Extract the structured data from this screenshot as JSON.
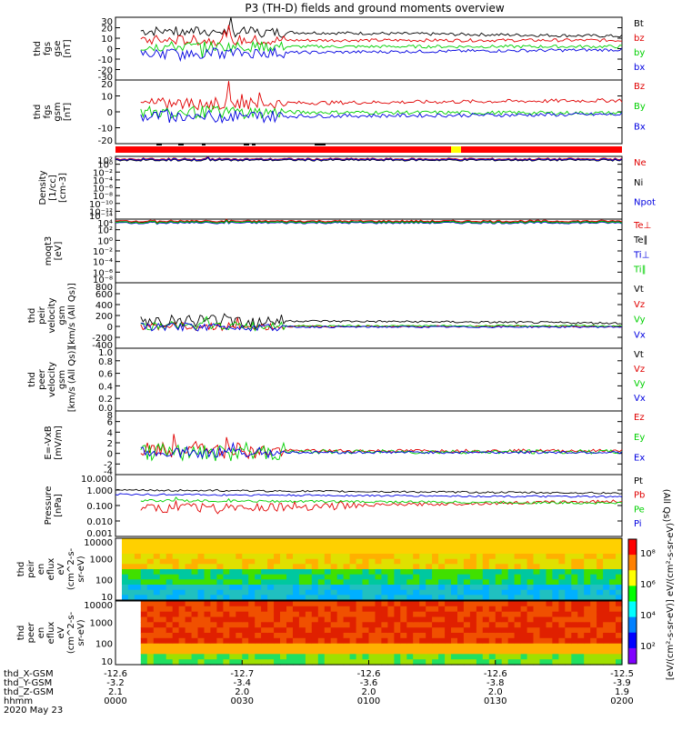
{
  "title": "P3 (TH-D) fields and ground moments overview",
  "time": {
    "start": "0000",
    "end": "0200",
    "date": "2020 May 23"
  },
  "colors": {
    "black": "#000000",
    "red": "#e00000",
    "green": "#00d000",
    "blue": "#0000e0",
    "yellow": "#ffff00"
  },
  "panels": [
    {
      "key": "fgs_gse",
      "ylabel_lines": [
        "thd",
        "fgs",
        "gse",
        "[nT]"
      ],
      "yticks": [
        "30",
        "20",
        "10",
        "0",
        "-10",
        "-20",
        "-30"
      ],
      "ylim": [
        -30,
        30
      ],
      "scale": "linear",
      "legend": [
        {
          "text": "Bt",
          "color": "#000000"
        },
        {
          "text": "bz",
          "color": "#e00000"
        },
        {
          "text": "by",
          "color": "#00d000"
        },
        {
          "text": "bx",
          "color": "#0000e0"
        }
      ]
    },
    {
      "key": "fgs_gsm",
      "ylabel_lines": [
        "thd",
        "fgs",
        "gsm",
        "[nT]"
      ],
      "yticks": [
        "20",
        "10",
        "0",
        "-10",
        "-20"
      ],
      "ylim": [
        -25,
        25
      ],
      "scale": "linear",
      "legend": [
        {
          "text": "Bz",
          "color": "#e00000"
        },
        {
          "text": "By",
          "color": "#00d000"
        },
        {
          "text": "Bx",
          "color": "#0000e0"
        }
      ]
    },
    {
      "key": "density",
      "ylabel_lines": [
        "Density",
        "[1/cc]",
        "[cm-3]"
      ],
      "yticks": [
        "10²",
        "10⁰",
        "10⁻²",
        "10⁻⁴",
        "10⁻⁶",
        "10⁻⁸",
        "10⁻¹⁰",
        "10⁻¹²",
        "10⁻¹⁴"
      ],
      "scale": "log",
      "legend": [
        {
          "text": "Ne",
          "color": "#e00000"
        },
        {
          "text": "Ni",
          "color": "#000000"
        },
        {
          "text": "Npot",
          "color": "#0000e0"
        }
      ]
    },
    {
      "key": "temperature",
      "ylabel_lines": [
        "moqt3",
        "[eV]"
      ],
      "yticks": [
        "10⁴",
        "10²",
        "10⁰",
        "10⁻²",
        "10⁻⁴",
        "10⁻⁶",
        "10⁻⁸"
      ],
      "scale": "log",
      "legend": [
        {
          "text": "Te⊥",
          "color": "#e00000"
        },
        {
          "text": "Te∥",
          "color": "#000000"
        },
        {
          "text": "Ti⊥",
          "color": "#0000e0"
        },
        {
          "text": "Ti∥",
          "color": "#00d000"
        }
      ]
    },
    {
      "key": "peir_velocity",
      "ylabel_lines": [
        "thd",
        "peir",
        "velocity",
        "gsm",
        "[km/s (All Qs)]"
      ],
      "yticks": [
        "800",
        "600",
        "400",
        "200",
        "0",
        "-200",
        "-400"
      ],
      "ylim": [
        -400,
        800
      ],
      "scale": "linear",
      "legend": [
        {
          "text": "Vt",
          "color": "#000000"
        },
        {
          "text": "Vz",
          "color": "#e00000"
        },
        {
          "text": "Vy",
          "color": "#00d000"
        },
        {
          "text": "Vx",
          "color": "#0000e0"
        }
      ]
    },
    {
      "key": "peer_velocity",
      "ylabel_lines": [
        "thd",
        "peer",
        "velocity",
        "gsm",
        "[km/s (All Qs)]"
      ],
      "yticks": [
        "1.0",
        "0.8",
        "0.6",
        "0.4",
        "0.2",
        "0.0"
      ],
      "ylim": [
        0,
        1
      ],
      "scale": "linear",
      "legend": [
        {
          "text": "Vt",
          "color": "#000000"
        },
        {
          "text": "Vz",
          "color": "#e00000"
        },
        {
          "text": "Vy",
          "color": "#00d000"
        },
        {
          "text": "Vx",
          "color": "#0000e0"
        }
      ]
    },
    {
      "key": "efield",
      "ylabel_lines": [
        "E=-VxB",
        "[mV/m]"
      ],
      "yticks": [
        "8",
        "6",
        "4",
        "2",
        "0",
        "-2",
        "-4"
      ],
      "ylim": [
        -4,
        8
      ],
      "scale": "linear",
      "legend": [
        {
          "text": "Ez",
          "color": "#e00000"
        },
        {
          "text": "Ey",
          "color": "#00d000"
        },
        {
          "text": "Ex",
          "color": "#0000e0"
        }
      ]
    },
    {
      "key": "pressure",
      "ylabel_lines": [
        "Pressure",
        "[nPa]"
      ],
      "yticks": [
        "10.000",
        "1.000",
        "0.100",
        "0.010",
        "0.001"
      ],
      "scale": "log",
      "legend": [
        {
          "text": "Pt",
          "color": "#000000"
        },
        {
          "text": "Pb",
          "color": "#e00000"
        },
        {
          "text": "Pe",
          "color": "#00d000"
        },
        {
          "text": "Pi",
          "color": "#0000e0"
        }
      ],
      "side_label": "(All Qs)"
    },
    {
      "key": "peir_eflux",
      "ylabel_lines": [
        "thd",
        "peir",
        "en",
        "eflux",
        "eV",
        "(cm^2-s-",
        "sr-eV)"
      ],
      "yticks": [
        "10000",
        "1000",
        "100",
        "10"
      ],
      "scale": "log"
    },
    {
      "key": "peer_eflux",
      "ylabel_lines": [
        "thd",
        "peer",
        "en",
        "eflux",
        "eV",
        "(cm^2-s-",
        "sr-eV)"
      ],
      "yticks": [
        "10000",
        "1000",
        "100",
        "10"
      ],
      "scale": "log"
    }
  ],
  "colorbar": {
    "ticks": [
      "10⁸",
      "10⁶",
      "10⁴",
      "10²"
    ],
    "label": "[eV/(cm²-s-sr-eV)] eV/(cm²-s-sr-eV)"
  },
  "footer": {
    "rows": [
      {
        "label": "thd_X-GSM",
        "values": [
          "-12.6",
          "-12.7",
          "-12.6",
          "-12.6",
          "-12.5"
        ]
      },
      {
        "label": "thd_Y-GSM",
        "values": [
          "-3.2",
          "-3.4",
          "-3.6",
          "-3.8",
          "-3.9"
        ]
      },
      {
        "label": "thd_Z-GSM",
        "values": [
          "2.1",
          "2.0",
          "2.0",
          "2.0",
          "1.9"
        ]
      },
      {
        "label": "hhmm",
        "values": [
          "0000",
          "0030",
          "0100",
          "0130",
          "0200"
        ]
      }
    ],
    "date": "2020 May 23"
  }
}
